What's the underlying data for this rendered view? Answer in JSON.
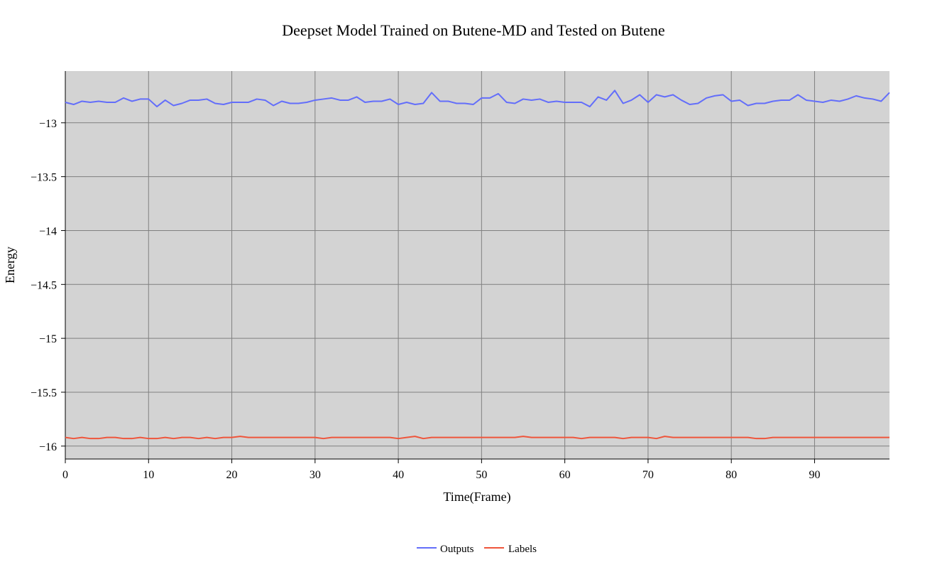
{
  "chart_data": {
    "type": "line",
    "title": "Deepset Model Trained on Butene-MD and Tested on Butene",
    "xlabel": "Time(Frame)",
    "ylabel": "Energy",
    "xlim": [
      0,
      99
    ],
    "ylim": [
      -16.12,
      -12.52
    ],
    "x_ticks": [
      0,
      10,
      20,
      30,
      40,
      50,
      60,
      70,
      80,
      90
    ],
    "x_tick_labels": [
      "0",
      "10",
      "20",
      "30",
      "40",
      "50",
      "60",
      "70",
      "80",
      "90"
    ],
    "y_ticks": [
      -13,
      -13.5,
      -14,
      -14.5,
      -15,
      -15.5,
      -16
    ],
    "y_tick_labels": [
      "−13",
      "−13.5",
      "−14",
      "−14.5",
      "−15",
      "−15.5",
      "−16"
    ],
    "grid": true,
    "legend_position": "bottom-center",
    "colors": {
      "plot_background": "#d3d3d3",
      "grid": "#808080",
      "outputs": "#636efa",
      "labels": "#ef553b"
    },
    "series": [
      {
        "name": "Outputs",
        "color": "#636efa",
        "values": [
          -12.81,
          -12.83,
          -12.8,
          -12.81,
          -12.8,
          -12.81,
          -12.81,
          -12.77,
          -12.8,
          -12.78,
          -12.78,
          -12.85,
          -12.79,
          -12.84,
          -12.82,
          -12.79,
          -12.79,
          -12.78,
          -12.82,
          -12.83,
          -12.81,
          -12.81,
          -12.81,
          -12.78,
          -12.79,
          -12.84,
          -12.8,
          -12.82,
          -12.82,
          -12.81,
          -12.79,
          -12.78,
          -12.77,
          -12.79,
          -12.79,
          -12.76,
          -12.81,
          -12.8,
          -12.8,
          -12.78,
          -12.83,
          -12.81,
          -12.83,
          -12.82,
          -12.72,
          -12.8,
          -12.8,
          -12.82,
          -12.82,
          -12.83,
          -12.77,
          -12.77,
          -12.73,
          -12.81,
          -12.82,
          -12.78,
          -12.79,
          -12.78,
          -12.81,
          -12.8,
          -12.81,
          -12.81,
          -12.81,
          -12.85,
          -12.76,
          -12.79,
          -12.7,
          -12.82,
          -12.79,
          -12.74,
          -12.81,
          -12.74,
          -12.76,
          -12.74,
          -12.79,
          -12.83,
          -12.82,
          -12.77,
          -12.75,
          -12.74,
          -12.8,
          -12.79,
          -12.84,
          -12.82,
          -12.82,
          -12.8,
          -12.79,
          -12.79,
          -12.74,
          -12.79,
          -12.8,
          -12.81,
          -12.79,
          -12.8,
          -12.78,
          -12.75,
          -12.77,
          -12.78,
          -12.8,
          -12.72
        ]
      },
      {
        "name": "Labels",
        "color": "#ef553b",
        "values": [
          -15.92,
          -15.93,
          -15.92,
          -15.93,
          -15.93,
          -15.92,
          -15.92,
          -15.93,
          -15.93,
          -15.92,
          -15.93,
          -15.93,
          -15.92,
          -15.93,
          -15.92,
          -15.92,
          -15.93,
          -15.92,
          -15.93,
          -15.92,
          -15.92,
          -15.91,
          -15.92,
          -15.92,
          -15.92,
          -15.92,
          -15.92,
          -15.92,
          -15.92,
          -15.92,
          -15.92,
          -15.93,
          -15.92,
          -15.92,
          -15.92,
          -15.92,
          -15.92,
          -15.92,
          -15.92,
          -15.92,
          -15.93,
          -15.92,
          -15.91,
          -15.93,
          -15.92,
          -15.92,
          -15.92,
          -15.92,
          -15.92,
          -15.92,
          -15.92,
          -15.92,
          -15.92,
          -15.92,
          -15.92,
          -15.91,
          -15.92,
          -15.92,
          -15.92,
          -15.92,
          -15.92,
          -15.92,
          -15.93,
          -15.92,
          -15.92,
          -15.92,
          -15.92,
          -15.93,
          -15.92,
          -15.92,
          -15.92,
          -15.93,
          -15.91,
          -15.92,
          -15.92,
          -15.92,
          -15.92,
          -15.92,
          -15.92,
          -15.92,
          -15.92,
          -15.92,
          -15.92,
          -15.93,
          -15.93,
          -15.92,
          -15.92,
          -15.92,
          -15.92,
          -15.92,
          -15.92,
          -15.92,
          -15.92,
          -15.92,
          -15.92,
          -15.92,
          -15.92,
          -15.92,
          -15.92,
          -15.92
        ]
      }
    ]
  }
}
